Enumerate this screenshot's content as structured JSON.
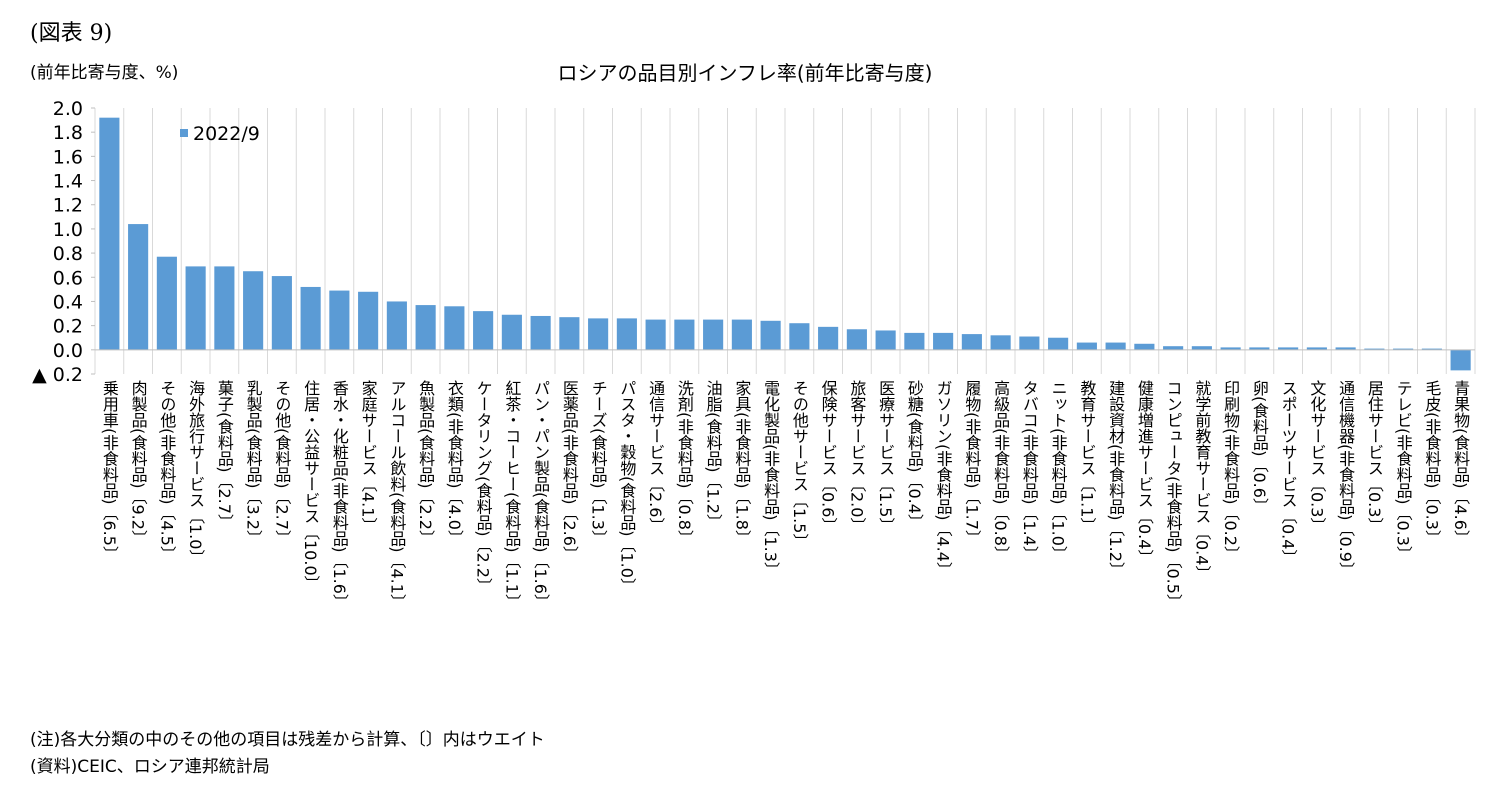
{
  "figure_label": "(図表 9)",
  "chart_data": {
    "type": "bar",
    "title": "ロシアの品目別インフレ率(前年比寄与度)",
    "y_axis_label": "(前年比寄与度、%)",
    "categories": [
      "乗用車(非食料品)〔6.5〕",
      "肉製品(食料品)〔9.2〕",
      "その他(非食料品)〔4.5〕",
      "海外旅行サービス〔1.0〕",
      "菓子(食料品)〔2.7〕",
      "乳製品(食料品)〔3.2〕",
      "その他(食料品)〔2.7〕",
      "住居・公益サービス〔10.0〕",
      "香水・化粧品(非食料品)〔1.6〕",
      "家庭サービス〔4.1〕",
      "アルコール飲料(食料品)〔4.1〕",
      "魚製品(食料品)〔2.2〕",
      "衣類(非食料品)〔4.0〕",
      "ケータリング(食料品)〔2.2〕",
      "紅茶・コーヒー(食料品)〔1.1〕",
      "パン・パン製品(食料品)〔1.6〕",
      "医薬品(非食料品)〔2.6〕",
      "チーズ(食料品)〔1.3〕",
      "パスタ・穀物(食料品)〔1.0〕",
      "通信サービス〔2.6〕",
      "洗剤(非食料品)〔0.8〕",
      "油脂(食料品)〔1.2〕",
      "家具(非食料品)〔1.8〕",
      "電化製品(非食料品)〔1.3〕",
      "その他サービス〔1.5〕",
      "保険サービス〔0.6〕",
      "旅客サービス〔2.0〕",
      "医療サービス〔1.5〕",
      "砂糖(食料品)〔0.4〕",
      "ガソリン(非食料品)〔4.4〕",
      "履物(非食料品)〔1.7〕",
      "高級品(非食料品)〔0.8〕",
      "タバコ(非食料品)〔1.4〕",
      "ニット(非食料品)〔1.0〕",
      "教育サービス〔1.1〕",
      "建設資材(非食料品)〔1.2〕",
      "健康増進サービス〔0.4〕",
      "コンピュータ(非食料品)〔0.5〕",
      "就学前教育サービス〔0.4〕",
      "印刷物(非食料品)〔0.2〕",
      "卵(食料品)〔0.6〕",
      "スポーツサービス〔0.4〕",
      "文化サービス〔0.3〕",
      "通信機器(非食料品)〔0.9〕",
      "居住サービス〔0.3〕",
      "テレビ(非食料品)〔0.3〕",
      "毛皮(非食料品)〔0.3〕",
      "青果物(食料品)〔4.6〕"
    ],
    "series": [
      {
        "name": "2022/9",
        "color": "#5b9bd5",
        "values": [
          1.92,
          1.04,
          0.77,
          0.69,
          0.69,
          0.65,
          0.61,
          0.52,
          0.49,
          0.48,
          0.4,
          0.37,
          0.36,
          0.32,
          0.29,
          0.28,
          0.27,
          0.26,
          0.26,
          0.25,
          0.25,
          0.25,
          0.25,
          0.24,
          0.22,
          0.19,
          0.17,
          0.16,
          0.14,
          0.14,
          0.13,
          0.12,
          0.11,
          0.1,
          0.06,
          0.06,
          0.05,
          0.03,
          0.03,
          0.02,
          0.02,
          0.02,
          0.02,
          0.02,
          0.01,
          0.01,
          0.01,
          -0.17
        ]
      }
    ],
    "ylim": [
      -0.2,
      2.0
    ],
    "yticks": [
      {
        "value": -0.2,
        "label": "▲ 0.2"
      },
      {
        "value": 0,
        "label": "0.0"
      },
      0.2,
      0.4,
      0.6,
      0.8,
      {
        "value": 1,
        "label": "1.0"
      },
      1.2,
      1.4,
      1.6,
      1.8,
      {
        "value": 2,
        "label": "2.0"
      }
    ],
    "legend": "top-left"
  },
  "notes": [
    "(注)各大分類の中のその他の項目は残差から計算、〔〕内はウエイト",
    "(資料)CEIC、ロシア連邦統計局"
  ]
}
